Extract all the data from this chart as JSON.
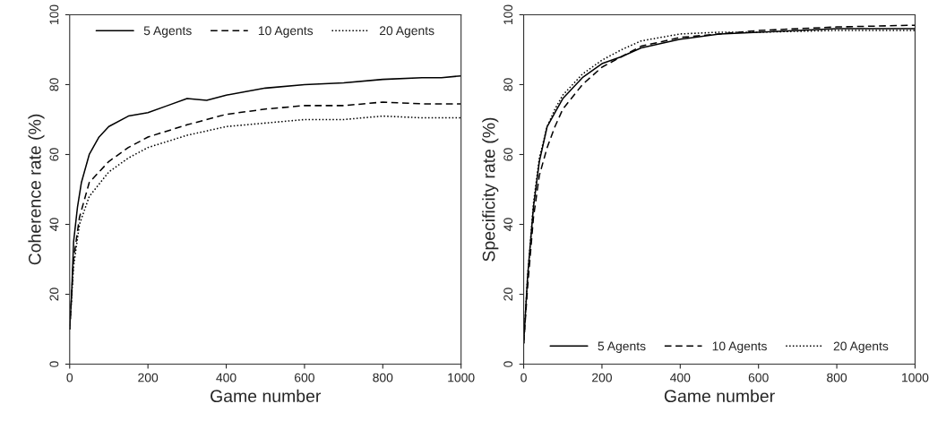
{
  "chart_data": [
    {
      "type": "line",
      "xlabel": "Game number",
      "ylabel": "Coherence rate (%)",
      "xlim": [
        0,
        1000
      ],
      "ylim": [
        0,
        100
      ],
      "xticks": [
        0,
        200,
        400,
        600,
        800,
        1000
      ],
      "yticks": [
        0,
        20,
        40,
        60,
        80,
        100
      ],
      "grid": false,
      "legend": "top",
      "marker": "none",
      "series": [
        {
          "name": "5 Agents",
          "color": "#000000",
          "line_style": "solid",
          "x": [
            0,
            5,
            10,
            20,
            30,
            50,
            75,
            100,
            150,
            200,
            250,
            300,
            350,
            400,
            450,
            500,
            600,
            700,
            800,
            900,
            950,
            1000
          ],
          "values": [
            10,
            20,
            35,
            45,
            52,
            60,
            65,
            68,
            71,
            72,
            74,
            76,
            75.5,
            77,
            78,
            79,
            80,
            80.5,
            81.5,
            82,
            82,
            82.5
          ]
        },
        {
          "name": "10 Agents",
          "color": "#000000",
          "line_style": "dashed",
          "x": [
            0,
            10,
            25,
            50,
            100,
            150,
            200,
            300,
            400,
            500,
            600,
            700,
            800,
            900,
            1000
          ],
          "values": [
            10,
            30,
            42,
            52,
            58,
            62,
            65,
            68.5,
            71.5,
            73,
            74,
            74,
            75,
            74.5,
            74.5
          ]
        },
        {
          "name": "20 Agents",
          "color": "#000000",
          "line_style": "dotted",
          "x": [
            0,
            10,
            25,
            50,
            100,
            150,
            200,
            300,
            400,
            500,
            600,
            700,
            800,
            900,
            1000
          ],
          "values": [
            10,
            28,
            40,
            48,
            55,
            59,
            62,
            65.5,
            68,
            69,
            70,
            70,
            71,
            70.5,
            70.5
          ]
        }
      ]
    },
    {
      "type": "line",
      "xlabel": "Game number",
      "ylabel": "Specificity rate (%)",
      "xlim": [
        0,
        1000
      ],
      "ylim": [
        0,
        100
      ],
      "xticks": [
        0,
        200,
        400,
        600,
        800,
        1000
      ],
      "yticks": [
        0,
        20,
        40,
        60,
        80,
        100
      ],
      "grid": false,
      "legend": "bottom",
      "marker": "none",
      "series": [
        {
          "name": "5 Agents",
          "color": "#000000",
          "line_style": "solid",
          "x": [
            0,
            10,
            25,
            40,
            60,
            80,
            100,
            150,
            200,
            250,
            300,
            400,
            500,
            600,
            800,
            1000
          ],
          "values": [
            6,
            25,
            45,
            58,
            68,
            72,
            76,
            82,
            86,
            88,
            90.5,
            93,
            94.5,
            95,
            96,
            96
          ]
        },
        {
          "name": "10 Agents",
          "color": "#000000",
          "line_style": "dashed",
          "x": [
            0,
            10,
            25,
            40,
            60,
            80,
            100,
            150,
            200,
            250,
            300,
            400,
            500,
            600,
            800,
            1000
          ],
          "values": [
            6,
            22,
            42,
            54,
            62,
            68,
            73,
            80,
            85,
            88,
            91,
            93.5,
            94.5,
            95.5,
            96.5,
            97
          ]
        },
        {
          "name": "20 Agents",
          "color": "#000000",
          "line_style": "dotted",
          "x": [
            0,
            10,
            25,
            40,
            60,
            80,
            100,
            150,
            200,
            250,
            300,
            400,
            500,
            600,
            800,
            1000
          ],
          "values": [
            6,
            25,
            46,
            59,
            68,
            73,
            77,
            83,
            87,
            90,
            92.5,
            94.5,
            95,
            95,
            95.5,
            95.5
          ]
        }
      ]
    }
  ]
}
